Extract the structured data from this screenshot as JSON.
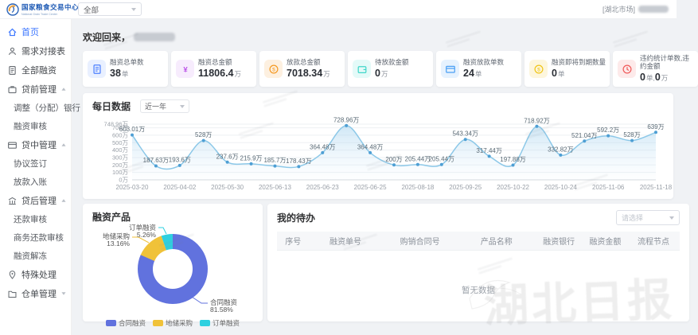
{
  "header": {
    "logo_title": "国家粮食交易中心",
    "logo_subtitle": "National Grain Trade Center",
    "scope_select_value": "全部",
    "market_tag": "[湖北市场]"
  },
  "sidebar": {
    "items": [
      {
        "label": "首页",
        "icon": "home-icon",
        "active": true
      },
      {
        "label": "需求对接表",
        "icon": "user-icon"
      },
      {
        "label": "全部融资",
        "icon": "document-icon"
      },
      {
        "label": "贷前管理",
        "icon": "briefcase-icon",
        "group": true,
        "expanded": true,
        "children": [
          "调整（分配）银行",
          "融资审核"
        ]
      },
      {
        "label": "贷中管理",
        "icon": "card-icon",
        "group": true,
        "expanded": true,
        "children": [
          "协议签订",
          "放款入账"
        ]
      },
      {
        "label": "贷后管理",
        "icon": "bank-icon",
        "group": true,
        "expanded": true,
        "children": [
          "还款审核",
          "商务还款审核",
          "融资解冻"
        ]
      },
      {
        "label": "特殊处理",
        "icon": "pin-icon"
      },
      {
        "label": "仓单管理",
        "icon": "folder-icon",
        "group": true,
        "expanded": false,
        "children": []
      }
    ]
  },
  "welcome": {
    "text": "欢迎回来，",
    "name_redacted": true
  },
  "stat_cards": [
    {
      "label": "融资总单数",
      "icon": "document-icon",
      "color": "#4c7fff",
      "bg": "#e9f0ff",
      "parts": [
        {
          "v": "38",
          "u": "单"
        }
      ]
    },
    {
      "label": "融资总金额",
      "icon": "yuan-icon",
      "color": "#bb52e8",
      "bg": "#f7ecfd",
      "parts": [
        {
          "v": "11806.4",
          "u": "万"
        }
      ]
    },
    {
      "label": "放款总金额",
      "icon": "coin-icon",
      "color": "#f59a23",
      "bg": "#fdf0e0",
      "parts": [
        {
          "v": "7018.34",
          "u": "万"
        }
      ]
    },
    {
      "label": "待放款金额",
      "icon": "wallet-icon",
      "color": "#3fd6c9",
      "bg": "#e4faf8",
      "parts": [
        {
          "v": "0",
          "u": "万"
        }
      ]
    },
    {
      "label": "融资放款单数",
      "icon": "card-icon",
      "color": "#4a9ff5",
      "bg": "#e6f2fe",
      "parts": [
        {
          "v": "24",
          "u": "单"
        }
      ]
    },
    {
      "label": "融资即将到期数量",
      "icon": "coin-icon",
      "color": "#f0c518",
      "bg": "#fdf6dd",
      "parts": [
        {
          "v": "0",
          "u": "单"
        }
      ]
    },
    {
      "label": "违约统计单数,违约金额",
      "icon": "clock-icon",
      "color": "#f05b5b",
      "bg": "#fdeaea",
      "parts": [
        {
          "v": "0",
          "u": "单,"
        },
        {
          "v": "0",
          "u": "万"
        }
      ]
    }
  ],
  "daily_chart": {
    "title": "每日数据",
    "range_select_value": "近一年",
    "chart_data": {
      "type": "area",
      "values": [
        603.01,
        187.63,
        193.6,
        528,
        237.6,
        215.9,
        185.7,
        178.43,
        364.48,
        728.96,
        364.48,
        200,
        205.44,
        205.44,
        543.34,
        317.44,
        197.88,
        718.92,
        332.82,
        521.04,
        592.2,
        528,
        639
      ],
      "point_labels": [
        "603.01万",
        "187.63万",
        "193.6万",
        "528万",
        "237.6万",
        "215.9万",
        "185.7万",
        "178.43万",
        "364.48万",
        "728.96万",
        "364.48万",
        "200万",
        "205.44万",
        "205.44万",
        "543.34万",
        "317.44万",
        "197.88万",
        "718.92万",
        "332.82万",
        "521.04万",
        "592.2万",
        "528万",
        "639万"
      ],
      "x_tick_labels": [
        "2025-03-20",
        "2025-04-02",
        "2025-05-30",
        "2025-06-13",
        "2025-06-23",
        "2025-06-25",
        "2025-08-18",
        "2025-09-25",
        "2025-10-22",
        "2025-10-24",
        "2025-11-06",
        "2025-11-18"
      ],
      "x_tick_indices": [
        0,
        2,
        4,
        6,
        8,
        10,
        12,
        14,
        16,
        18,
        20,
        22
      ],
      "y_ticks": [
        "0万",
        "100万",
        "200万",
        "300万",
        "400万",
        "500万",
        "600万",
        "700万",
        "748.96万"
      ],
      "y_tick_values": [
        0,
        100,
        200,
        300,
        400,
        500,
        600,
        700,
        748.96
      ],
      "ymax": 748.96,
      "line_color": "#8cc8e8",
      "marker_color": "#4e9fd4",
      "grid": true,
      "legend_position": "none"
    }
  },
  "products_chart": {
    "title": "融资产品",
    "chart_data": {
      "type": "pie",
      "slices": [
        {
          "name": "合同融资",
          "percent": 81.58,
          "label": "81.58%",
          "color": "#6172de"
        },
        {
          "name": "地储采购",
          "percent": 13.16,
          "label": "13.16%",
          "color": "#f0c239"
        },
        {
          "name": "订单融资",
          "percent": 5.26,
          "label": "5.26%",
          "color": "#2ed0e0"
        }
      ],
      "legend": [
        "合同融资",
        "地储采购",
        "订单融资"
      ],
      "legend_position": "bottom"
    }
  },
  "todo": {
    "title": "我的待办",
    "filter_placeholder": "请选择",
    "columns": [
      "序号",
      "融资单号",
      "购销合同号",
      "产品名称",
      "融资银行",
      "融资金额",
      "流程节点"
    ],
    "empty_text": "暂无数据"
  },
  "watermark": {
    "text": "湖北日报"
  },
  "colors": {
    "accent": "#3b76ff",
    "page_bg": "#f0f2f5"
  }
}
